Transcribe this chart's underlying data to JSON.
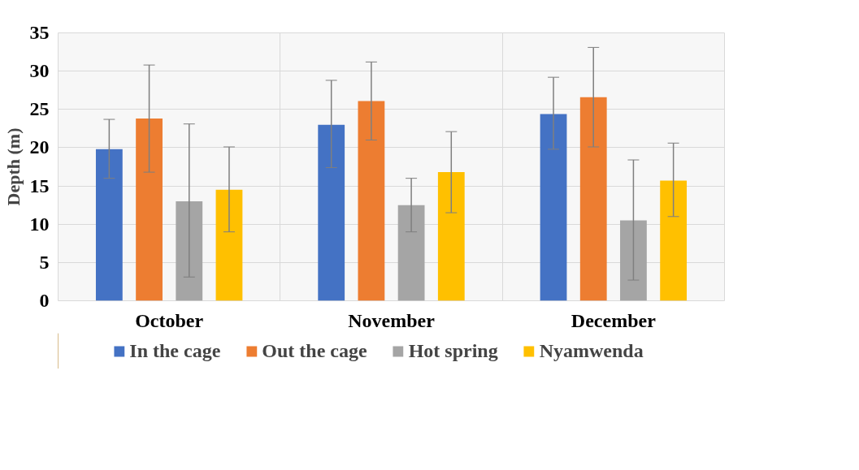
{
  "chart_data": {
    "type": "bar",
    "ylabel": "Depth (m)",
    "categories": [
      "October",
      "November",
      "December"
    ],
    "series": [
      {
        "name": "In the cage",
        "color": "#4472c4",
        "values": [
          19.8,
          23.0,
          24.4
        ],
        "errors": [
          [
            16.0,
            23.7
          ],
          [
            17.4,
            28.8
          ],
          [
            19.8,
            29.2
          ]
        ]
      },
      {
        "name": "Out the cage",
        "color": "#ed7d31",
        "values": [
          23.8,
          26.1,
          26.6
        ],
        "errors": [
          [
            16.8,
            30.8
          ],
          [
            21.0,
            31.2
          ],
          [
            20.1,
            33.1
          ]
        ]
      },
      {
        "name": "Hot spring",
        "color": "#a5a5a5",
        "values": [
          13.0,
          12.5,
          10.5
        ],
        "errors": [
          [
            3.1,
            23.1
          ],
          [
            9.0,
            16.0
          ],
          [
            2.7,
            18.4
          ]
        ]
      },
      {
        "name": "Nyamwenda",
        "color": "#ffc000",
        "values": [
          14.5,
          16.8,
          15.7
        ],
        "errors": [
          [
            9.0,
            20.1
          ],
          [
            11.5,
            22.1
          ],
          [
            11.0,
            20.6
          ]
        ]
      }
    ],
    "ylim": [
      0,
      35
    ],
    "yticks": [
      0,
      5,
      10,
      15,
      20,
      25,
      30,
      35
    ],
    "grid": true,
    "legend": "bottom"
  }
}
